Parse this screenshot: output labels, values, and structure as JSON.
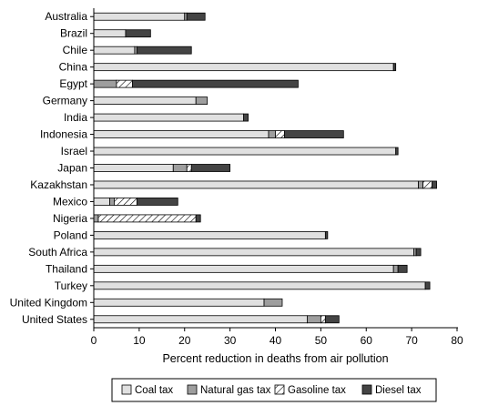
{
  "chart_data": {
    "type": "bar",
    "orientation": "horizontal",
    "stacked": true,
    "categories": [
      "Australia",
      "Brazil",
      "Chile",
      "China",
      "Egypt",
      "Germany",
      "India",
      "Indonesia",
      "Israel",
      "Japan",
      "Kazakhstan",
      "Mexico",
      "Nigeria",
      "Poland",
      "South Africa",
      "Thailand",
      "Turkey",
      "United Kingdom",
      "United States"
    ],
    "series": [
      {
        "name": "Coal tax",
        "color": "#e0e0e0",
        "pattern": "solid",
        "values": [
          20,
          7,
          9,
          66,
          0,
          22.5,
          33,
          38.5,
          66.5,
          17.5,
          71.5,
          3.5,
          0,
          51,
          70.5,
          66,
          73,
          37.5,
          47
        ]
      },
      {
        "name": "Natural gas tax",
        "color": "#9e9e9e",
        "pattern": "solid",
        "values": [
          0.5,
          0,
          0.5,
          0,
          5,
          2.5,
          0,
          1.5,
          0,
          3,
          1,
          1,
          1,
          0,
          0.5,
          1,
          0,
          4,
          3
        ]
      },
      {
        "name": "Gasoline tax",
        "color": "#ffffff",
        "pattern": "hatch",
        "values": [
          0,
          0,
          0,
          0,
          3.5,
          0,
          0,
          2,
          0,
          1,
          2,
          5,
          21.5,
          0,
          0,
          0,
          0,
          0,
          1
        ]
      },
      {
        "name": "Diesel tax",
        "color": "#444444",
        "pattern": "solid",
        "values": [
          4,
          5.5,
          12,
          0.5,
          36.5,
          0,
          1,
          13,
          0.5,
          8.5,
          1,
          9,
          1,
          0.5,
          1,
          2,
          1,
          0,
          3
        ]
      }
    ],
    "xlabel": "Percent reduction in deaths from air pollution",
    "xlim": [
      0,
      80
    ],
    "xticks": [
      "0",
      "10",
      "20",
      "30",
      "40",
      "50",
      "60",
      "70",
      "80"
    ],
    "grid": false,
    "legend_position": "bottom"
  }
}
